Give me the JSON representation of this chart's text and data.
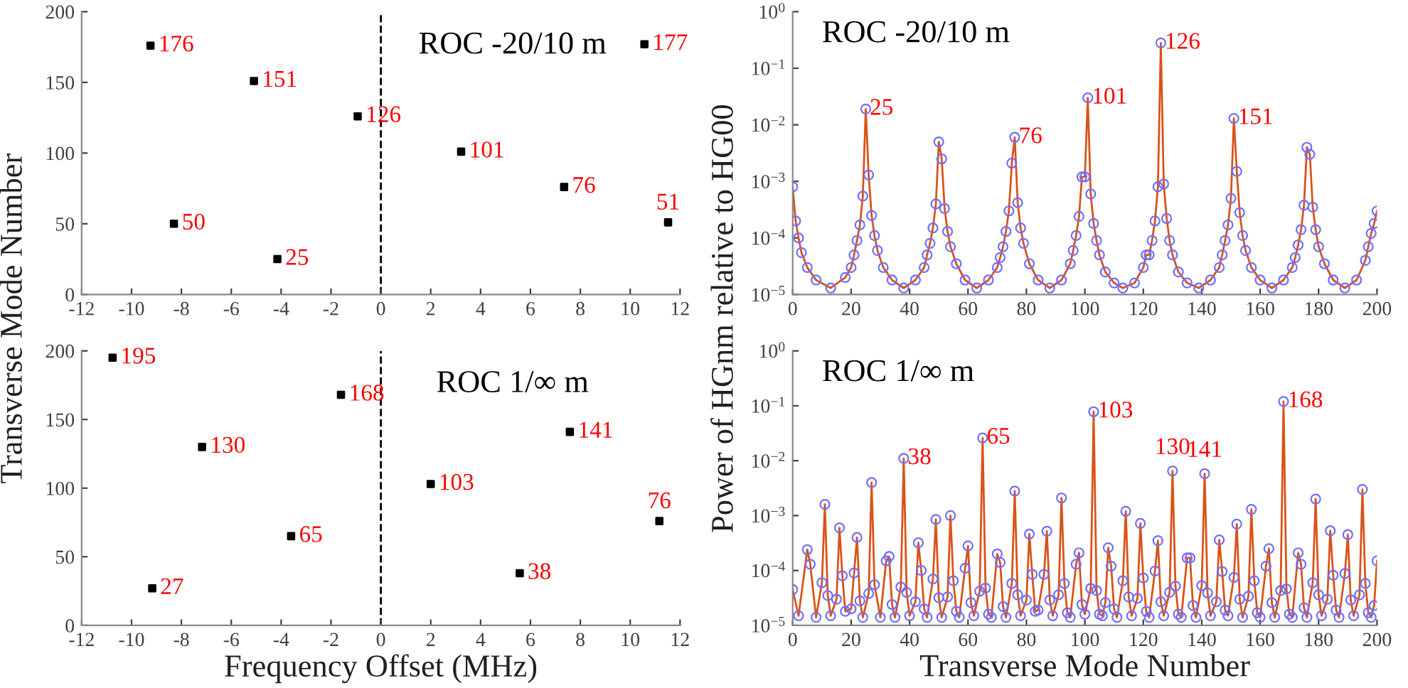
{
  "chart_data": [
    {
      "type": "scatter",
      "title": "ROC -20/10 m",
      "ylabel": "Transverse Mode Number",
      "marker": "square",
      "data_labels": true,
      "xlim": [
        -12,
        12
      ],
      "xticks": [
        -12,
        -10,
        -8,
        -6,
        -4,
        -2,
        0,
        2,
        4,
        6,
        8,
        10,
        12
      ],
      "ylim": [
        0,
        200
      ],
      "yticks": [
        0,
        50,
        100,
        150,
        200
      ],
      "grid": false,
      "legend": false,
      "ref_lines": [
        {
          "axis": "x",
          "value": 0,
          "color": "#000000",
          "line_style": "dashed"
        }
      ],
      "series": [
        {
          "color": "#000000",
          "x": [
            -9.24,
            -5.09,
            -0.93,
            -8.3,
            -4.15,
            3.22,
            7.35,
            11.52,
            10.57
          ],
          "values": [
            176,
            151,
            126,
            50,
            25,
            101,
            76,
            51,
            177
          ]
        }
      ]
    },
    {
      "type": "line",
      "title": "ROC -20/10 m",
      "ylabel": "Power of HGnm relative to HG00",
      "log": "y",
      "line_style": "solid",
      "xlim": [
        0,
        200
      ],
      "xticks": [
        0,
        20,
        40,
        60,
        80,
        100,
        120,
        140,
        160,
        180,
        200
      ],
      "ylim": [
        1e-05,
        1
      ],
      "yticks": [
        {
          "value": 1e-05,
          "label": "10$^{−5}$"
        },
        {
          "value": 0.0001,
          "label": "10$^{−4}$"
        },
        {
          "value": 0.001,
          "label": "10$^{−3}$"
        },
        {
          "value": 0.01,
          "label": "10$^{−2}$"
        },
        {
          "value": 0.1,
          "label": "10$^{−1}$"
        },
        {
          "value": 1,
          "label": "10$^{0}$"
        }
      ],
      "grid": false,
      "legend": false,
      "annotations": [
        {
          "text": "25",
          "x": 25,
          "y": 0.019
        },
        {
          "text": "76",
          "x": 76,
          "y": 0.006
        },
        {
          "text": "101",
          "x": 101,
          "y": 0.03
        },
        {
          "text": "126",
          "x": 126,
          "y": 0.28
        },
        {
          "text": "151",
          "x": 151,
          "y": 0.013
        }
      ],
      "x": [
        0,
        1,
        2,
        3,
        5,
        8,
        13,
        18,
        20,
        21,
        22,
        23,
        24,
        25,
        26,
        27,
        28,
        29,
        31,
        34,
        38,
        42,
        45,
        46,
        47,
        48,
        49,
        50,
        51,
        52,
        53,
        54,
        56,
        59,
        63,
        67,
        70,
        71,
        72,
        73,
        74,
        75,
        76,
        77,
        78,
        79,
        81,
        84,
        88,
        92,
        95,
        96,
        97,
        98,
        99,
        100,
        101,
        102,
        103,
        104,
        105,
        107,
        110,
        113,
        117,
        120,
        121,
        122,
        123,
        124,
        125,
        126,
        127,
        128,
        129,
        130,
        132,
        135,
        139,
        143,
        146,
        147,
        148,
        149,
        150,
        151,
        152,
        153,
        154,
        155,
        157,
        160,
        164,
        168,
        171,
        172,
        173,
        174,
        175,
        176,
        177,
        178,
        179,
        180,
        182,
        185,
        189,
        193,
        196,
        197,
        198,
        199,
        200
      ],
      "series": [
        {
          "type": "line",
          "marker": "none",
          "color": "#d95319",
          "values": [
            0.0008,
            0.0002,
            0.0001,
            5.5e-05,
            3e-05,
            1.8e-05,
            1.3e-05,
            2e-05,
            3e-05,
            5e-05,
            9e-05,
            0.00017,
            0.00055,
            0.019,
            0.0013,
            0.00025,
            0.00011,
            6e-05,
            3e-05,
            1.8e-05,
            1.3e-05,
            1.8e-05,
            3e-05,
            5e-05,
            8e-05,
            0.00015,
            0.0004,
            0.005,
            0.0025,
            0.00033,
            0.00013,
            7e-05,
            3.5e-05,
            1.8e-05,
            1.3e-05,
            1.8e-05,
            3e-05,
            4.5e-05,
            7e-05,
            0.00013,
            0.0003,
            0.0021,
            0.006,
            0.00042,
            0.00015,
            8e-05,
            3.5e-05,
            1.8e-05,
            1.3e-05,
            1.8e-05,
            3.5e-05,
            6e-05,
            0.00011,
            0.00024,
            0.0012,
            0.0012,
            0.03,
            0.0006,
            0.00018,
            9e-05,
            5e-05,
            2.5e-05,
            1.6e-05,
            1.3e-05,
            1.6e-05,
            3e-05,
            5e-05,
            5e-05,
            9e-05,
            0.0002,
            0.0008,
            0.28,
            0.0009,
            0.00022,
            9e-05,
            5e-05,
            2.5e-05,
            1.6e-05,
            1.3e-05,
            1.8e-05,
            3e-05,
            5e-05,
            9e-05,
            0.00017,
            0.0005,
            0.013,
            0.0015,
            0.00028,
            0.00011,
            6e-05,
            3e-05,
            1.8e-05,
            1.3e-05,
            1.8e-05,
            3e-05,
            4.5e-05,
            7.5e-05,
            0.00014,
            0.00038,
            0.004,
            0.003,
            0.00035,
            0.00014,
            7e-05,
            3.5e-05,
            1.8e-05,
            1.3e-05,
            1.8e-05,
            4e-05,
            7e-05,
            0.00012,
            0.00018,
            0.0003
          ]
        },
        {
          "type": "scatter",
          "marker": "circle",
          "color": "#6f6fff",
          "values": [
            0.0008,
            0.0002,
            0.0001,
            5.5e-05,
            3e-05,
            1.8e-05,
            1.3e-05,
            2e-05,
            3e-05,
            5e-05,
            9e-05,
            0.00017,
            0.00055,
            0.019,
            0.0013,
            0.00025,
            0.00011,
            6e-05,
            3e-05,
            1.8e-05,
            1.3e-05,
            1.8e-05,
            3e-05,
            5e-05,
            8e-05,
            0.00015,
            0.0004,
            0.005,
            0.0025,
            0.00033,
            0.00013,
            7e-05,
            3.5e-05,
            1.8e-05,
            1.3e-05,
            1.8e-05,
            3e-05,
            4.5e-05,
            7e-05,
            0.00013,
            0.0003,
            0.0021,
            0.006,
            0.00042,
            0.00015,
            8e-05,
            3.5e-05,
            1.8e-05,
            1.3e-05,
            1.8e-05,
            3.5e-05,
            6e-05,
            0.00011,
            0.00024,
            0.0012,
            0.0012,
            0.03,
            0.0006,
            0.00018,
            9e-05,
            5e-05,
            2.5e-05,
            1.6e-05,
            1.3e-05,
            1.6e-05,
            3e-05,
            5e-05,
            5e-05,
            9e-05,
            0.0002,
            0.0008,
            0.28,
            0.0009,
            0.00022,
            9e-05,
            5e-05,
            2.5e-05,
            1.6e-05,
            1.3e-05,
            1.8e-05,
            3e-05,
            5e-05,
            9e-05,
            0.00017,
            0.0005,
            0.013,
            0.0015,
            0.00028,
            0.00011,
            6e-05,
            3e-05,
            1.8e-05,
            1.3e-05,
            1.8e-05,
            3e-05,
            4.5e-05,
            7.5e-05,
            0.00014,
            0.00038,
            0.004,
            0.003,
            0.00035,
            0.00014,
            7e-05,
            3.5e-05,
            1.8e-05,
            1.3e-05,
            1.8e-05,
            4e-05,
            7e-05,
            0.00012,
            0.00018,
            0.0003
          ]
        }
      ]
    },
    {
      "type": "scatter",
      "title": "ROC 1/∞ m",
      "xlabel": "Frequency Offset (MHz)",
      "marker": "square",
      "data_labels": true,
      "xlim": [
        -12,
        12
      ],
      "xticks": [
        -12,
        -10,
        -8,
        -6,
        -4,
        -2,
        0,
        2,
        4,
        6,
        8,
        10,
        12
      ],
      "ylim": [
        0,
        200
      ],
      "yticks": [
        0,
        50,
        100,
        150,
        200
      ],
      "grid": false,
      "legend": false,
      "ref_lines": [
        {
          "axis": "x",
          "value": 0,
          "color": "#000000",
          "line_style": "dashed"
        }
      ],
      "series": [
        {
          "color": "#000000",
          "x": [
            -10.76,
            -1.6,
            -7.17,
            -3.6,
            -9.17,
            2.0,
            7.58,
            5.57,
            11.17
          ],
          "values": [
            195,
            168,
            130,
            65,
            27,
            103,
            141,
            38,
            76
          ]
        }
      ]
    },
    {
      "type": "line",
      "title": "ROC 1/∞ m",
      "xlabel": "Transverse Mode Number",
      "log": "y",
      "line_style": "solid",
      "xlim": [
        0,
        200
      ],
      "xticks": [
        0,
        20,
        40,
        60,
        80,
        100,
        120,
        140,
        160,
        180,
        200
      ],
      "ylim": [
        1e-05,
        1
      ],
      "yticks": [
        {
          "value": 1e-05,
          "label": "10$^{−5}$"
        },
        {
          "value": 0.0001,
          "label": "10$^{−4}$"
        },
        {
          "value": 0.001,
          "label": "10$^{−3}$"
        },
        {
          "value": 0.01,
          "label": "10$^{−2}$"
        },
        {
          "value": 0.1,
          "label": "10$^{−1}$"
        },
        {
          "value": 1,
          "label": "10$^{0}$"
        }
      ],
      "grid": false,
      "legend": false,
      "annotations": [
        {
          "text": "38",
          "x": 38,
          "y": 0.011
        },
        {
          "text": "65",
          "x": 65,
          "y": 0.026
        },
        {
          "text": "103",
          "x": 103,
          "y": 0.078
        },
        {
          "text": "130",
          "x": 130,
          "y": 0.0065
        },
        {
          "text": "141",
          "x": 141,
          "y": 0.0058
        },
        {
          "text": "168",
          "x": 168,
          "y": 0.12
        }
      ],
      "x": [
        0,
        2,
        5,
        6,
        8,
        10,
        11,
        12,
        13,
        15,
        16,
        17,
        18,
        20,
        21,
        22,
        23,
        24,
        26,
        27,
        28,
        30,
        32,
        33,
        34,
        35,
        37,
        38,
        39,
        40,
        42,
        43,
        44,
        45,
        46,
        48,
        49,
        50,
        51,
        53,
        54,
        55,
        56,
        57,
        59,
        60,
        61,
        62,
        64,
        65,
        66,
        67,
        68,
        70,
        71,
        72,
        73,
        75,
        76,
        77,
        78,
        80,
        81,
        82,
        83,
        84,
        86,
        87,
        88,
        89,
        91,
        92,
        93,
        94,
        95,
        97,
        98,
        99,
        100,
        102,
        103,
        104,
        105,
        106,
        107,
        108,
        109,
        110,
        111,
        113,
        114,
        115,
        116,
        118,
        119,
        120,
        121,
        122,
        124,
        125,
        126,
        127,
        129,
        130,
        131,
        132,
        133,
        135,
        136,
        137,
        138,
        140,
        141,
        142,
        143,
        145,
        146,
        147,
        148,
        149,
        151,
        152,
        153,
        154,
        156,
        157,
        158,
        159,
        160,
        162,
        163,
        164,
        165,
        167,
        168,
        169,
        170,
        171,
        173,
        174,
        175,
        176,
        178,
        179,
        180,
        181,
        183,
        184,
        185,
        186,
        187,
        189,
        190,
        191,
        192,
        194,
        195,
        196,
        197,
        198,
        199,
        200
      ],
      "series": [
        {
          "type": "line",
          "marker": "none",
          "color": "#d95319",
          "values": [
            4.5e-05,
            1.5e-05,
            0.00024,
            0.00013,
            1.4e-05,
            6e-05,
            0.0016,
            3.5e-05,
            1.5e-05,
            3e-05,
            0.0006,
            8e-05,
            1.8e-05,
            2e-05,
            9e-05,
            0.0004,
            2.8e-05,
            1.4e-05,
            3.8e-05,
            0.004,
            5.5e-05,
            1.4e-05,
            0.00015,
            0.00018,
            2.4e-05,
            1.4e-05,
            5e-05,
            0.011,
            4e-05,
            1.5e-05,
            2.7e-05,
            0.00032,
            0.0001,
            2e-05,
            1.4e-05,
            7e-05,
            0.00085,
            3.2e-05,
            1.4e-05,
            3.3e-05,
            0.001,
            6.5e-05,
            1.8e-05,
            1.4e-05,
            0.00011,
            0.00028,
            2.6e-05,
            1.5e-05,
            4.2e-05,
            0.026,
            4.8e-05,
            1.6e-05,
            1.4e-05,
            0.0002,
            0.00014,
            2.2e-05,
            1.4e-05,
            5.8e-05,
            0.0028,
            3.6e-05,
            1.5e-05,
            2.9e-05,
            0.00046,
            8.5e-05,
            1.8e-05,
            1.9e-05,
            8.5e-05,
            0.00052,
            2.9e-05,
            1.5e-05,
            3.6e-05,
            0.0021,
            5.8e-05,
            1.7e-05,
            1.4e-05,
            0.00013,
            0.00021,
            2.4e-05,
            1.6e-05,
            4.7e-05,
            0.078,
            4.3e-05,
            1.6e-05,
            1.5e-05,
            2.6e-05,
            0.00026,
            0.00012,
            2e-05,
            1.4e-05,
            6.5e-05,
            0.0012,
            3.3e-05,
            1.5e-05,
            3.1e-05,
            0.00072,
            7.3e-05,
            1.8e-05,
            1.4e-05,
            9.8e-05,
            0.00035,
            2.7e-05,
            1.5e-05,
            4e-05,
            0.0065,
            5.2e-05,
            1.6e-05,
            1.4e-05,
            0.00017,
            0.00017,
            2.3e-05,
            1.4e-05,
            5.3e-05,
            0.0058,
            3.9e-05,
            1.5e-05,
            2.7e-05,
            0.00036,
            9.6e-05,
            1.9e-05,
            1.5e-05,
            7.5e-05,
            0.0007,
            3e-05,
            1.4e-05,
            3.4e-05,
            0.0013,
            6.5e-05,
            1.7e-05,
            1.4e-05,
            0.00012,
            0.00025,
            2.6e-05,
            1.4e-05,
            4.3e-05,
            0.12,
            4.6e-05,
            1.6e-05,
            1.4e-05,
            0.00021,
            0.00013,
            2.1e-05,
            1.4e-05,
            6e-05,
            0.002,
            3.6e-05,
            1.5e-05,
            3e-05,
            0.00053,
            8.2e-05,
            1.9e-05,
            1.4e-05,
            8.8e-05,
            0.00045,
            2.9e-05,
            1.5e-05,
            3.6e-05,
            0.003,
            5.8e-05,
            1.7e-05,
            1.4e-05,
            2.3e-05,
            0.00015
          ]
        },
        {
          "type": "scatter",
          "marker": "circle",
          "color": "#6f6fff",
          "values": [
            4.5e-05,
            1.5e-05,
            0.00024,
            0.00013,
            1.4e-05,
            6e-05,
            0.0016,
            3.5e-05,
            1.5e-05,
            3e-05,
            0.0006,
            8e-05,
            1.8e-05,
            2e-05,
            9e-05,
            0.0004,
            2.8e-05,
            1.4e-05,
            3.8e-05,
            0.004,
            5.5e-05,
            1.4e-05,
            0.00015,
            0.00018,
            2.4e-05,
            1.4e-05,
            5e-05,
            0.011,
            4e-05,
            1.5e-05,
            2.7e-05,
            0.00032,
            0.0001,
            2e-05,
            1.4e-05,
            7e-05,
            0.00085,
            3.2e-05,
            1.4e-05,
            3.3e-05,
            0.001,
            6.5e-05,
            1.8e-05,
            1.4e-05,
            0.00011,
            0.00028,
            2.6e-05,
            1.5e-05,
            4.2e-05,
            0.026,
            4.8e-05,
            1.6e-05,
            1.4e-05,
            0.0002,
            0.00014,
            2.2e-05,
            1.4e-05,
            5.8e-05,
            0.0028,
            3.6e-05,
            1.5e-05,
            2.9e-05,
            0.00046,
            8.5e-05,
            1.8e-05,
            1.9e-05,
            8.5e-05,
            0.00052,
            2.9e-05,
            1.5e-05,
            3.6e-05,
            0.0021,
            5.8e-05,
            1.7e-05,
            1.4e-05,
            0.00013,
            0.00021,
            2.4e-05,
            1.6e-05,
            4.7e-05,
            0.078,
            4.3e-05,
            1.6e-05,
            1.5e-05,
            2.6e-05,
            0.00026,
            0.00012,
            2e-05,
            1.4e-05,
            6.5e-05,
            0.0012,
            3.3e-05,
            1.5e-05,
            3.1e-05,
            0.00072,
            7.3e-05,
            1.8e-05,
            1.4e-05,
            9.8e-05,
            0.00035,
            2.7e-05,
            1.5e-05,
            4e-05,
            0.0065,
            5.2e-05,
            1.6e-05,
            1.4e-05,
            0.00017,
            0.00017,
            2.3e-05,
            1.4e-05,
            5.3e-05,
            0.0058,
            3.9e-05,
            1.5e-05,
            2.7e-05,
            0.00036,
            9.6e-05,
            1.9e-05,
            1.5e-05,
            7.5e-05,
            0.0007,
            3e-05,
            1.4e-05,
            3.4e-05,
            0.0013,
            6.5e-05,
            1.7e-05,
            1.4e-05,
            0.00012,
            0.00025,
            2.6e-05,
            1.4e-05,
            4.3e-05,
            0.12,
            4.6e-05,
            1.6e-05,
            1.4e-05,
            0.00021,
            0.00013,
            2.1e-05,
            1.4e-05,
            6e-05,
            0.002,
            3.6e-05,
            1.5e-05,
            3e-05,
            0.00053,
            8.2e-05,
            1.9e-05,
            1.4e-05,
            8.8e-05,
            0.00045,
            2.9e-05,
            1.5e-05,
            3.6e-05,
            0.003,
            5.8e-05,
            1.7e-05,
            1.4e-05,
            2.3e-05,
            0.00015
          ]
        }
      ]
    }
  ]
}
